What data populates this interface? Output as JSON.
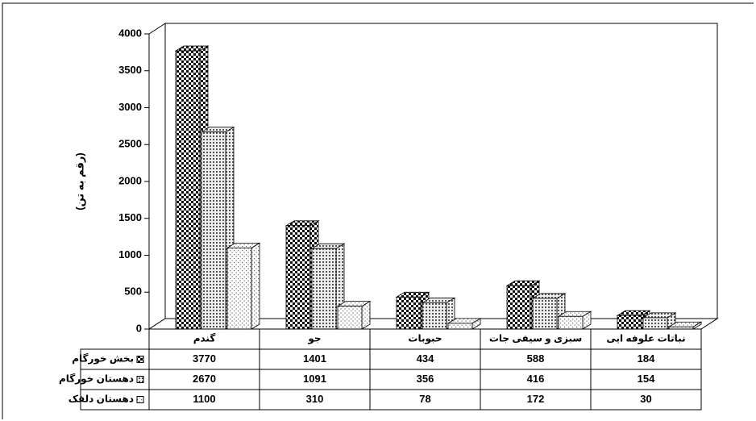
{
  "chart_data": {
    "type": "bar3d",
    "y_label": "(رقم به تن)",
    "categories": [
      "گندم",
      "جو",
      "حبوبات",
      "سبزی و سیفی جات",
      "نباتات علوفه ایی"
    ],
    "series": [
      {
        "name": "بخش خورگام",
        "values": [
          3770,
          1401,
          434,
          588,
          184
        ]
      },
      {
        "name": "دهستان خورگام",
        "values": [
          2670,
          1091,
          356,
          416,
          154
        ]
      },
      {
        "name": "دهستان دلفک",
        "values": [
          1100,
          310,
          78,
          172,
          30
        ]
      }
    ],
    "ylim": [
      0,
      4000
    ],
    "yticks": [
      0,
      500,
      1000,
      1500,
      2000,
      2500,
      3000,
      3500,
      4000
    ]
  }
}
